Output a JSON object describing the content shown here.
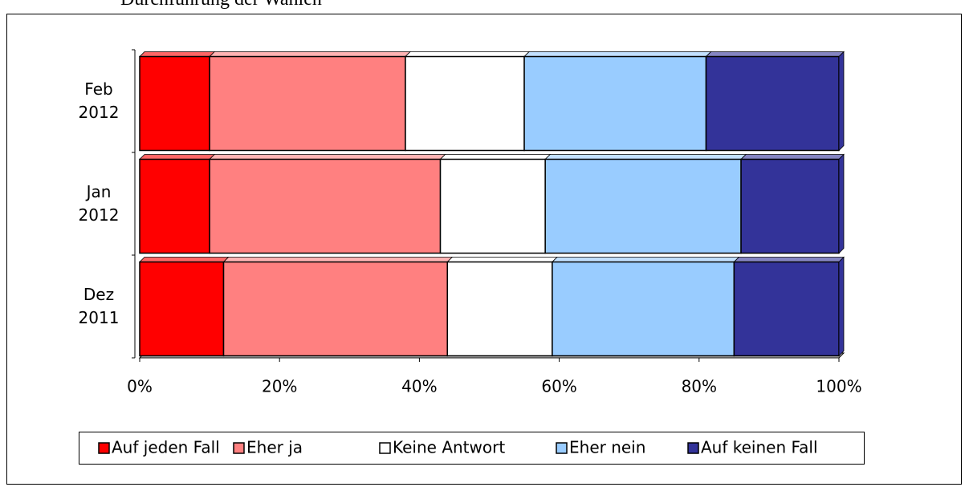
{
  "chart_data": {
    "type": "bar",
    "orientation": "horizontal",
    "stacked": true,
    "title": "Durchführung der Wahlen",
    "categories": [
      "Dez 2011",
      "Jan 2012",
      "Feb 2012"
    ],
    "series": [
      {
        "name": "Auf jeden Fall",
        "color": "#ff0000",
        "values": [
          12,
          10,
          10
        ]
      },
      {
        "name": "Eher ja",
        "color": "#ff8080",
        "values": [
          32,
          33,
          28
        ]
      },
      {
        "name": "Keine Antwort",
        "color": "#ffffff",
        "values": [
          15,
          15,
          17
        ]
      },
      {
        "name": "Eher nein",
        "color": "#99ccff",
        "values": [
          26,
          28,
          26
        ]
      },
      {
        "name": "Auf keinen Fall",
        "color": "#333399",
        "values": [
          15,
          14,
          19
        ]
      }
    ],
    "xlim": [
      0,
      100
    ],
    "xticks": [
      {
        "value": 0,
        "label": "0%"
      },
      {
        "value": 20,
        "label": "20%"
      },
      {
        "value": 40,
        "label": "40%"
      },
      {
        "value": 60,
        "label": "60%"
      },
      {
        "value": 80,
        "label": "80%"
      },
      {
        "value": 100,
        "label": "100%"
      }
    ],
    "legend": "bottom"
  }
}
